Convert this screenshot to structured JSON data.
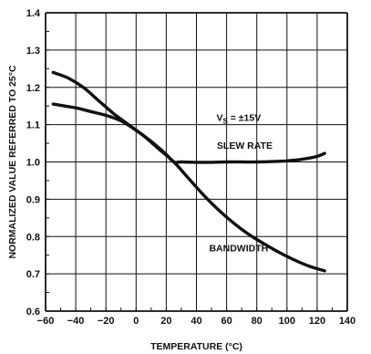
{
  "chart_data": {
    "type": "line",
    "xlabel": "TEMPERATURE (°C)",
    "ylabel": "NORMALIZED VALUE REFERRED TO 25°C",
    "xlim": [
      -60,
      140
    ],
    "ylim": [
      0.6,
      1.4
    ],
    "xticks": [
      -60,
      -40,
      -20,
      0,
      20,
      40,
      60,
      80,
      100,
      120,
      140
    ],
    "xtick_labels": [
      "−60",
      "−40",
      "−20",
      "0",
      "20",
      "40",
      "60",
      "80",
      "100",
      "120",
      "140"
    ],
    "yticks": [
      0.6,
      0.7,
      0.8,
      0.9,
      1.0,
      1.1,
      1.2,
      1.3,
      1.4
    ],
    "ytick_labels": [
      "0.6",
      "0.7",
      "0.8",
      "0.9",
      "1.0",
      "1.1",
      "1.2",
      "1.3",
      "1.4"
    ],
    "grid": true,
    "annotations": [
      {
        "text": "V",
        "sub": "S",
        "suffix": " = ±15V",
        "x": 68,
        "y": 1.11
      },
      {
        "text": "SLEW RATE",
        "x": 72,
        "y": 1.035
      },
      {
        "text": "BANDWIDTH",
        "x": 68,
        "y": 0.76
      }
    ],
    "series": [
      {
        "name": "SLEW RATE",
        "x": [
          -55,
          -40,
          -30,
          -20,
          -10,
          0,
          10,
          20,
          25,
          30,
          40,
          50,
          60,
          70,
          80,
          90,
          100,
          110,
          120,
          125
        ],
        "y": [
          1.155,
          1.145,
          1.135,
          1.125,
          1.11,
          1.085,
          1.055,
          1.02,
          1.0,
          1.0,
          0.999,
          0.999,
          1.0,
          1.0,
          1.0,
          1.001,
          1.003,
          1.007,
          1.015,
          1.023
        ]
      },
      {
        "name": "BANDWIDTH",
        "x": [
          -55,
          -45,
          -35,
          -25,
          -15,
          -5,
          5,
          15,
          25,
          35,
          45,
          55,
          65,
          75,
          85,
          95,
          105,
          115,
          125
        ],
        "y": [
          1.24,
          1.225,
          1.2,
          1.165,
          1.13,
          1.1,
          1.07,
          1.035,
          1.0,
          0.955,
          0.91,
          0.87,
          0.835,
          0.805,
          0.78,
          0.757,
          0.737,
          0.72,
          0.708
        ]
      }
    ]
  }
}
